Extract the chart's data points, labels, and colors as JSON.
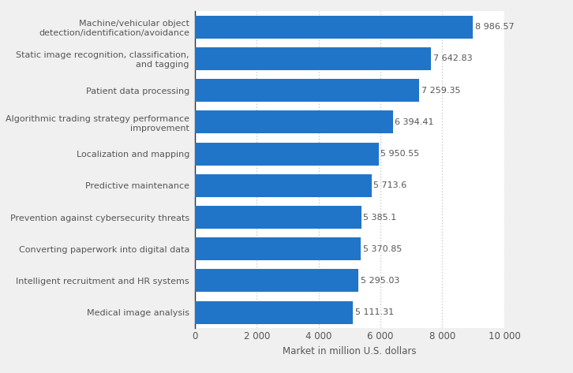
{
  "categories": [
    "Medical image analysis",
    "Intelligent recruitment and HR systems",
    "Converting paperwork into digital data",
    "Prevention against cybersecurity threats",
    "Predictive maintenance",
    "Localization and mapping",
    "Algorithmic trading strategy performance\nimprovement",
    "Patient data processing",
    "Static image recognition, classification,\nand tagging",
    "Machine/vehicular object\ndetection/identification/avoidance"
  ],
  "values": [
    5111.31,
    5295.03,
    5370.85,
    5385.1,
    5713.6,
    5950.55,
    6394.41,
    7259.35,
    7642.83,
    8986.57
  ],
  "labels": [
    "5 111.31",
    "5 295.03",
    "5 370.85",
    "5 385.1",
    "5 713.6",
    "5 950.55",
    "6 394.41",
    "7 259.35",
    "7 642.83",
    "8 986.57"
  ],
  "bar_color": "#2175c8",
  "figure_bg_color": "#f0f0f0",
  "plot_bg_color": "#ffffff",
  "xlabel": "Market in million U.S. dollars",
  "xlim": [
    0,
    10000
  ],
  "xticks": [
    0,
    2000,
    4000,
    6000,
    8000,
    10000
  ],
  "xtick_labels": [
    "0",
    "2 000",
    "4 000",
    "6 000",
    "8 000",
    "10 000"
  ],
  "grid_color": "#cccccc",
  "bar_height": 0.72,
  "label_fontsize": 8.0,
  "tick_fontsize": 8.5,
  "xlabel_fontsize": 8.5,
  "text_color": "#555555"
}
